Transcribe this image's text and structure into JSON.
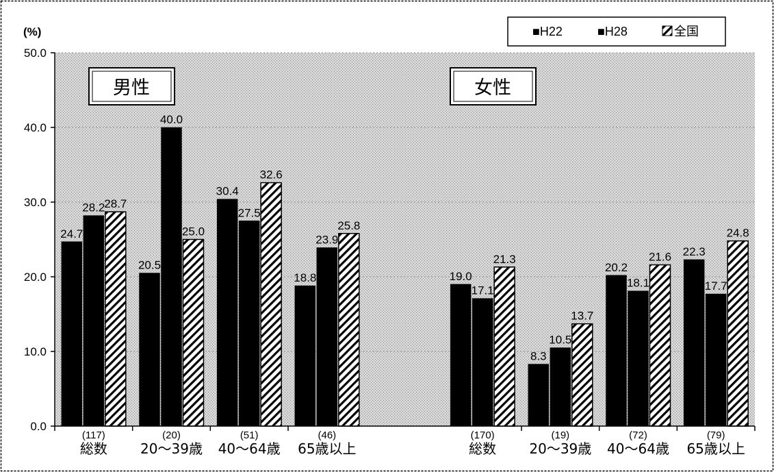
{
  "chart_data": {
    "type": "bar",
    "unit_label": "(%)",
    "ylim": [
      0,
      50
    ],
    "yticks": [
      "50.0",
      "40.0",
      "30.0",
      "20.0",
      "10.0",
      "0.0"
    ],
    "legend": [
      {
        "name": "■H22",
        "color": "#000000"
      },
      {
        "name": "■H28",
        "color": "#000000"
      },
      {
        "name": "全国",
        "color": "#ffffff",
        "pattern": "hatch"
      }
    ],
    "panels": [
      {
        "label": "男性",
        "categories": [
          {
            "count": "(117)",
            "name": "総数",
            "values": [
              24.7,
              28.2,
              28.7
            ],
            "labels": [
              "24.7",
              "28.2",
              "28.7"
            ]
          },
          {
            "count": "(20)",
            "name": "20～39歳",
            "values": [
              20.5,
              40.0,
              25.0
            ],
            "labels": [
              "20.5",
              "40.0",
              "25.0"
            ]
          },
          {
            "count": "(51)",
            "name": "40～64歳",
            "values": [
              30.4,
              27.5,
              32.6
            ],
            "labels": [
              "30.4",
              "27.5",
              "32.6"
            ]
          },
          {
            "count": "(46)",
            "name": "65歳以上",
            "values": [
              18.8,
              23.9,
              25.8
            ],
            "labels": [
              "18.8",
              "23.9",
              "25.8"
            ]
          }
        ]
      },
      {
        "label": "女性",
        "categories": [
          {
            "count": "(170)",
            "name": "総数",
            "values": [
              19.0,
              17.1,
              21.3
            ],
            "labels": [
              "19.0",
              "17.1",
              "21.3"
            ]
          },
          {
            "count": "(19)",
            "name": "20～39歳",
            "values": [
              8.3,
              10.5,
              13.7
            ],
            "labels": [
              "8.3",
              "10.5",
              "13.7"
            ]
          },
          {
            "count": "(72)",
            "name": "40～64歳",
            "values": [
              20.2,
              18.1,
              21.6
            ],
            "labels": [
              "20.2",
              "18.1",
              "21.6"
            ]
          },
          {
            "count": "(79)",
            "name": "65歳以上",
            "values": [
              22.3,
              17.7,
              24.8
            ],
            "labels": [
              "22.3",
              "17.7",
              "24.8"
            ]
          }
        ]
      }
    ]
  }
}
